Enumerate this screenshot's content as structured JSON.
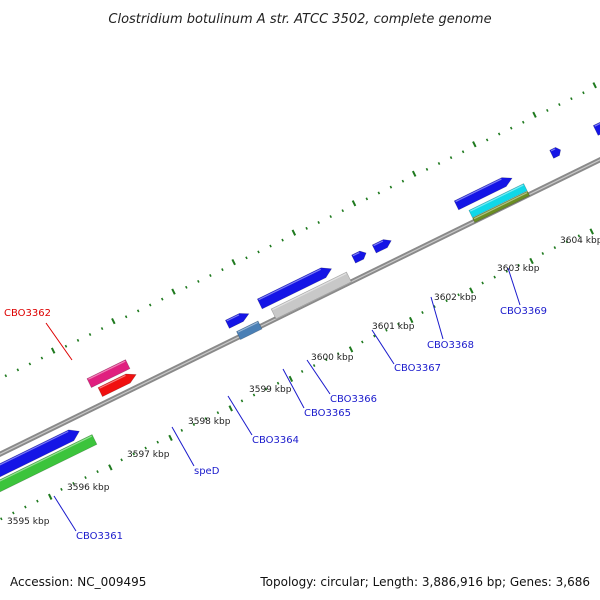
{
  "title": "Clostridium botulinum A str. ATCC 3502, complete genome",
  "footer": {
    "accession": "Accession: NC_009495",
    "summary": "Topology: circular; Length: 3,886,916 bp; Genes: 3,686"
  },
  "colors": {
    "backbone": "#8a8a8a",
    "tick": "#1f7a1f",
    "label_blue": "#1a1acc",
    "label_red": "#dd0000"
  },
  "kbp_labels": [
    "3595 kbp",
    "3596 kbp",
    "3597 kbp",
    "3598 kbp",
    "3599 kbp",
    "3600 kbp",
    "3601 kbp",
    "3602 kbp",
    "3603 kbp",
    "3604 kbp"
  ],
  "gene_labels": [
    {
      "key": "cbo3361",
      "text": "CBO3361",
      "color": "#1a1acc"
    },
    {
      "key": "cbo3362",
      "text": "CBO3362",
      "color": "#dd0000"
    },
    {
      "key": "sped",
      "text": "speD",
      "color": "#1a1acc"
    },
    {
      "key": "cbo3364",
      "text": "CBO3364",
      "color": "#1a1acc"
    },
    {
      "key": "cbo3365",
      "text": "CBO3365",
      "color": "#1a1acc"
    },
    {
      "key": "cbo3366",
      "text": "CBO3366",
      "color": "#1a1acc"
    },
    {
      "key": "cbo3367",
      "text": "CBO3367",
      "color": "#1a1acc"
    },
    {
      "key": "cbo3368",
      "text": "CBO3368",
      "color": "#1a1acc"
    },
    {
      "key": "cbo3369",
      "text": "CBO3369",
      "color": "#1a1acc"
    }
  ],
  "feature_colors": {
    "forward": "#1515e6",
    "pink": "#e0207f",
    "red": "#f01010",
    "green": "#3cc43c",
    "grey": "#c8c8c8",
    "steelblue": "#4a7fb5",
    "cyan": "#10d8e8",
    "olive": "#6b8e23",
    "salmon": "#f08080"
  }
}
